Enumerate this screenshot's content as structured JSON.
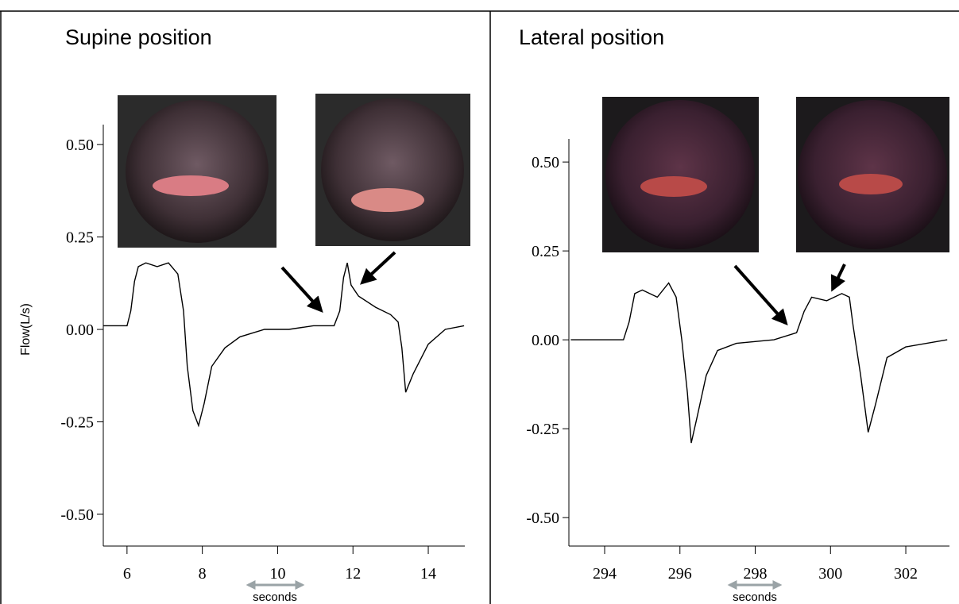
{
  "chart_data": [
    {
      "type": "line",
      "title": "Supine position",
      "y_label": "Flow(L/s)",
      "annotation": "seconds",
      "x": [
        5.37,
        6.0,
        6.1,
        6.2,
        6.3,
        6.5,
        6.8,
        7.1,
        7.35,
        7.5,
        7.6,
        7.75,
        7.9,
        8.05,
        8.25,
        8.6,
        9.0,
        9.65,
        10.3,
        10.95,
        11.5,
        11.65,
        11.75,
        11.85,
        11.95,
        12.15,
        12.6,
        13.0,
        13.2,
        13.3,
        13.4,
        13.6,
        14.0,
        14.45,
        14.95
      ],
      "series": [
        {
          "color": "#000000",
          "values": [
            0.01,
            0.01,
            0.05,
            0.13,
            0.17,
            0.18,
            0.17,
            0.18,
            0.15,
            0.05,
            -0.1,
            -0.22,
            -0.26,
            -0.2,
            -0.1,
            -0.05,
            -0.02,
            0.0,
            0.0,
            0.01,
            0.01,
            0.05,
            0.14,
            0.18,
            0.12,
            0.09,
            0.06,
            0.04,
            0.02,
            -0.05,
            -0.17,
            -0.12,
            -0.04,
            0.0,
            0.01
          ]
        }
      ],
      "xlim": [
        5.37,
        14.97
      ],
      "ylim": [
        -0.586,
        0.554
      ],
      "xticks": [
        6,
        8,
        10,
        12,
        14
      ],
      "yticks": [
        {
          "value": 0.5,
          "label": "0.50"
        },
        0.25,
        {
          "value": 0,
          "label": "0.00"
        },
        -0.25,
        {
          "value": -0.5,
          "label": "-0.50"
        }
      ]
    },
    {
      "type": "line",
      "title": "Lateral position",
      "annotation": "seconds",
      "x": [
        293.1,
        294.5,
        294.65,
        294.8,
        295.0,
        295.4,
        295.7,
        295.9,
        296.05,
        296.2,
        296.3,
        296.45,
        296.7,
        297.0,
        297.5,
        298.5,
        299.1,
        299.3,
        299.5,
        299.9,
        300.3,
        300.5,
        300.6,
        300.8,
        301.0,
        301.2,
        301.5,
        302.0,
        303.1
      ],
      "series": [
        {
          "color": "#000000",
          "values": [
            0.0,
            0.0,
            0.05,
            0.13,
            0.14,
            0.12,
            0.16,
            0.12,
            0.0,
            -0.15,
            -0.29,
            -0.22,
            -0.1,
            -0.03,
            -0.01,
            0.0,
            0.02,
            0.08,
            0.12,
            0.11,
            0.13,
            0.12,
            0.04,
            -0.1,
            -0.26,
            -0.18,
            -0.05,
            -0.02,
            0.0
          ]
        }
      ],
      "xlim": [
        293.05,
        303.16
      ],
      "ylim": [
        -0.58,
        0.565
      ],
      "xticks": [
        294,
        296,
        298,
        300,
        302
      ],
      "yticks": [
        {
          "value": 0.5,
          "label": "0.50"
        },
        0.25,
        {
          "value": 0,
          "label": "0.00"
        },
        -0.25,
        {
          "value": -0.5,
          "label": "-0.50"
        }
      ]
    }
  ]
}
